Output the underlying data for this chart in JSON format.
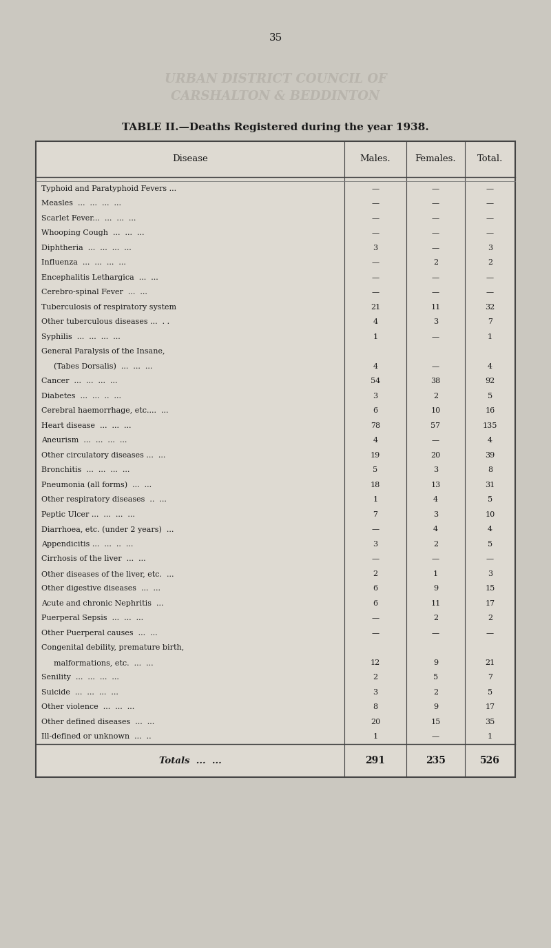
{
  "page_number": "35",
  "watermark_line1": "URBAN DISTRICT COUNCIL OF",
  "watermark_line2": "CARSHALTON & BEDDINTON",
  "title": "TABLE II.—Deaths Registered during the year 1938.",
  "col_headers": [
    "Disease",
    "Males.",
    "Females.",
    "Total."
  ],
  "rows": [
    [
      "Typhoid and Paratyphoid Fevers ...",
      "—",
      "—",
      "—"
    ],
    [
      "Measles  ...  ...  ...  ...",
      "—",
      "—",
      "—"
    ],
    [
      "Scarlet Fever...  ...  ...  ...",
      "—",
      "—",
      "—"
    ],
    [
      "Whooping Cough  ...  ...  ...",
      "—",
      "—",
      "—"
    ],
    [
      "Diphtheria  ...  ...  ...  ...",
      "3",
      "—",
      "3"
    ],
    [
      "Influenza  ...  ...  ...  ...",
      "—",
      "2",
      "2"
    ],
    [
      "Encephalitis Lethargica  ...  ...",
      "—",
      "—",
      "—"
    ],
    [
      "Cerebro-spinal Fever  ...  ...",
      "—",
      "—",
      "—"
    ],
    [
      "Tuberculosis of respiratory system",
      "21",
      "11",
      "32"
    ],
    [
      "Other tuberculous diseases ...  . .",
      "4",
      "3",
      "7"
    ],
    [
      "Syphilis  ...  ...  ...  ...",
      "1",
      "—",
      "1"
    ],
    [
      "General Paralysis of the Insane,",
      "",
      "",
      ""
    ],
    [
      "  (Tabes Dorsalis)  ...  ...  ...",
      "4",
      "—",
      "4"
    ],
    [
      "Cancer  ...  ...  ...  ...",
      "54",
      "38",
      "92"
    ],
    [
      "Diabetes  ...  ...  ..  ...",
      "3",
      "2",
      "5"
    ],
    [
      "Cerebral haemorrhage, etc....  ...",
      "6",
      "10",
      "16"
    ],
    [
      "Heart disease  ...  ...  ...",
      "78",
      "57",
      "135"
    ],
    [
      "Aneurism  ...  ...  ...  ...",
      "4",
      "—",
      "4"
    ],
    [
      "Other circulatory diseases ...  ...",
      "19",
      "20",
      "39"
    ],
    [
      "Bronchitis  ...  ...  ...  ...",
      "5",
      "3",
      "8"
    ],
    [
      "Pneumonia (all forms)  ...  ...",
      "18",
      "13",
      "31"
    ],
    [
      "Other respiratory diseases  ..  ...",
      "1",
      "4",
      "5"
    ],
    [
      "Peptic Ulcer ...  ...  ...  ...",
      "7",
      "3",
      "10"
    ],
    [
      "Diarrhoea, etc. (under 2 years)  ...",
      "—",
      "4",
      "4"
    ],
    [
      "Appendicitis ...  ...  ..  ...",
      "3",
      "2",
      "5"
    ],
    [
      "Cirrhosis of the liver  ...  ...",
      "—",
      "—",
      "—"
    ],
    [
      "Other diseases of the liver, etc.  ...",
      "2",
      "1",
      "3"
    ],
    [
      "Other digestive diseases  ...  ...",
      "6",
      "9",
      "15"
    ],
    [
      "Acute and chronic Nephritis  ...",
      "6",
      "11",
      "17"
    ],
    [
      "Puerperal Sepsis  ...  ...  ...",
      "—",
      "2",
      "2"
    ],
    [
      "Other Puerperal causes  ...  ...",
      "—",
      "—",
      "—"
    ],
    [
      "Congenital debility, premature birth,",
      "",
      "",
      ""
    ],
    [
      "  malformations, etc.  ...  ...",
      "12",
      "9",
      "21"
    ],
    [
      "Senility  ...  ...  ...  ...",
      "2",
      "5",
      "7"
    ],
    [
      "Suicide  ...  ...  ...  ...",
      "3",
      "2",
      "5"
    ],
    [
      "Other violence  ...  ...  ...",
      "8",
      "9",
      "17"
    ],
    [
      "Other defined diseases  ...  ...",
      "20",
      "15",
      "35"
    ],
    [
      "Ill-defined or unknown  ...  ..",
      "1",
      "—",
      "1"
    ]
  ],
  "totals_label": "Totals",
  "totals": [
    "291",
    "235",
    "526"
  ],
  "bg_color": "#cbc8c0",
  "table_bg": "#dedad2",
  "text_color": "#1a1a1a",
  "watermark_color": "#b0aca4",
  "border_color": "#444444",
  "header_sep_color": "#777777"
}
